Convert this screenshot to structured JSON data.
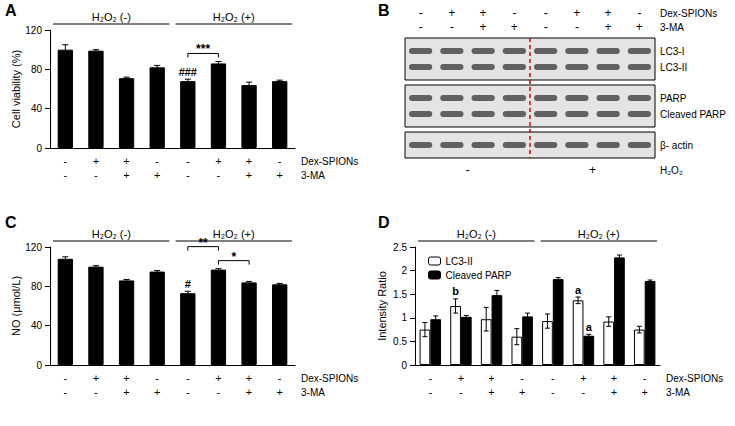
{
  "chart_data": [
    {
      "panel": "A",
      "type": "bar",
      "ylabel": "Cell viability (%)",
      "ylim": [
        0,
        120
      ],
      "yticks": [
        0,
        40,
        80,
        120
      ],
      "grid": false,
      "color": "#000000",
      "values": [
        100,
        99,
        71,
        82,
        68,
        86,
        64,
        68
      ],
      "errors": [
        5,
        1,
        1,
        2,
        2,
        2,
        3,
        1
      ],
      "flags": [
        null,
        null,
        null,
        null,
        "###",
        null,
        null,
        null
      ],
      "rows": [
        {
          "label": "Dex-SPIONs",
          "values": [
            "-",
            "+",
            "+",
            "-",
            "-",
            "+",
            "+",
            "-"
          ]
        },
        {
          "label": "3-MA",
          "values": [
            "-",
            "-",
            "+",
            "+",
            "-",
            "-",
            "+",
            "+"
          ]
        }
      ],
      "groups": [
        {
          "text": "H₂O₂ (-)",
          "start": 0,
          "end": 3
        },
        {
          "text": "H₂O₂ (+)",
          "start": 4,
          "end": 7
        }
      ],
      "brackets": [
        {
          "text": "***",
          "start": 4,
          "end": 5
        }
      ]
    },
    {
      "panel": "B",
      "type": "blot",
      "rows": [
        {
          "label": "Dex-SPIONs",
          "values": [
            "-",
            "+",
            "+",
            "-",
            "-",
            "+",
            "+",
            "-"
          ]
        },
        {
          "label": "3-MA",
          "values": [
            "-",
            "-",
            "+",
            "+",
            "-",
            "-",
            "+",
            "+"
          ]
        }
      ],
      "bands": [
        [
          "LC3-I",
          "LC3-II"
        ],
        [
          "PARP",
          "Cleaved PARP"
        ],
        [
          "β- actin"
        ]
      ],
      "groups": [
        {
          "text": "-",
          "start": 0,
          "end": 3
        },
        {
          "text": "+",
          "start": 4,
          "end": 7
        }
      ],
      "group_label": "H₂O₂"
    },
    {
      "panel": "C",
      "type": "bar",
      "ylabel": "NO (μmol/L)",
      "ylim": [
        0,
        120
      ],
      "yticks": [
        0,
        40,
        80,
        120
      ],
      "grid": false,
      "color": "#000000",
      "values": [
        108,
        100,
        86,
        95,
        73,
        97,
        84,
        82
      ],
      "errors": [
        2,
        1,
        1,
        1,
        2,
        1,
        1,
        1
      ],
      "flags": [
        null,
        null,
        null,
        null,
        "#",
        null,
        null,
        null
      ],
      "rows": [
        {
          "label": "Dex-SPIONs",
          "values": [
            "-",
            "+",
            "+",
            "-",
            "-",
            "+",
            "+",
            "-"
          ]
        },
        {
          "label": "3-MA",
          "values": [
            "-",
            "-",
            "+",
            "+",
            "-",
            "-",
            "+",
            "+"
          ]
        }
      ],
      "groups": [
        {
          "text": "H₂O₂ (-)",
          "start": 0,
          "end": 3
        },
        {
          "text": "H₂O₂ (+)",
          "start": 4,
          "end": 7
        }
      ],
      "brackets": [
        {
          "text": "*",
          "start": 5,
          "end": 6
        },
        {
          "text": "**",
          "start": 4,
          "end": 5
        }
      ]
    },
    {
      "panel": "D",
      "type": "bar",
      "ylabel": "Intensity Ratio",
      "ylim": [
        0,
        2.5
      ],
      "yticks": [
        0,
        0.5,
        1,
        1.5,
        2,
        2.5
      ],
      "grid": false,
      "legend": "top-left",
      "series": [
        {
          "name": "LC3-II",
          "color": "#ffffff",
          "values": [
            0.75,
            1.25,
            0.97,
            0.6,
            0.93,
            1.37,
            0.92,
            0.75
          ],
          "errors": [
            0.15,
            0.15,
            0.25,
            0.17,
            0.15,
            0.07,
            0.1,
            0.07
          ],
          "flags": [
            null,
            "b",
            null,
            null,
            null,
            "a",
            null,
            null
          ]
        },
        {
          "name": "Cleaved PARP",
          "color": "#000000",
          "values": [
            0.97,
            1.02,
            1.48,
            1.03,
            1.82,
            0.62,
            2.28,
            1.78
          ],
          "errors": [
            0.07,
            0.03,
            0.1,
            0.07,
            0.03,
            0.03,
            0.05,
            0.02
          ],
          "flags": [
            null,
            null,
            null,
            null,
            null,
            "a",
            null,
            null
          ]
        }
      ],
      "rows": [
        {
          "label": "Dex-SPIONs",
          "values": [
            "-",
            "+",
            "+",
            "-",
            "-",
            "+",
            "+",
            "-"
          ]
        },
        {
          "label": "3-MA",
          "values": [
            "-",
            "-",
            "+",
            "+",
            "-",
            "-",
            "+",
            "+"
          ]
        }
      ],
      "groups": [
        {
          "text": "H₂O₂ (-)",
          "start": 0,
          "end": 3
        },
        {
          "text": "H₂O₂ (+)",
          "start": 4,
          "end": 7
        }
      ],
      "brackets": []
    }
  ]
}
